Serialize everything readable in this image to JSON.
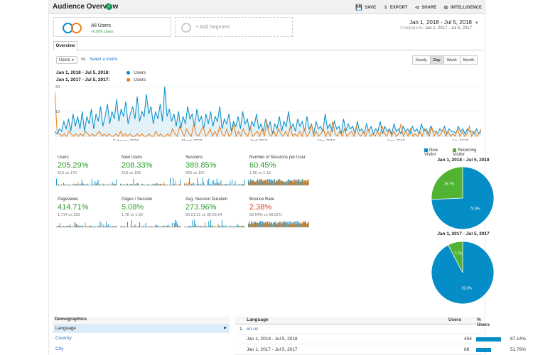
{
  "header": {
    "title": "Audience Overview",
    "actions": [
      {
        "icon": "save-icon",
        "glyph": "💾",
        "label": "SAVE"
      },
      {
        "icon": "export-icon",
        "glyph": "⇪",
        "label": "EXPORT"
      },
      {
        "icon": "share-icon",
        "glyph": "⋖",
        "label": "SHARE"
      },
      {
        "icon": "intelligence-icon",
        "glyph": "⊗",
        "label": "INTELLIGENCE"
      }
    ]
  },
  "segments": {
    "active": {
      "name": "All Users",
      "sub": "+0.00% Users"
    },
    "add_label": "+ Add Segment"
  },
  "date_range": {
    "primary": "Jan 1, 2018 - Jul 5, 2018",
    "compare_label": "Compare to:",
    "compare": "Jan 1, 2017 - Jul 5, 2017"
  },
  "tab": "Overview",
  "controls": {
    "metric": "Users",
    "vs": "vs.",
    "select_metric": "Select a metric",
    "periods": [
      "Hourly",
      "Day",
      "Week",
      "Month"
    ],
    "active_period": "Day"
  },
  "colors": {
    "blue": "#058dc7",
    "orange": "#ed7e17",
    "green": "#50b432"
  },
  "legend": [
    {
      "range": "Jan 1, 2018 - Jul 5, 2018:",
      "series": "Users",
      "color": "#058dc7"
    },
    {
      "range": "Jan 1, 2017 - Jul 5, 2017:",
      "series": "Users",
      "color": "#ed7e17"
    }
  ],
  "chart_data": {
    "type": "line",
    "y_ticks": [
      "20",
      "10"
    ],
    "ylim": [
      0,
      20
    ],
    "x_labels": [
      "February 2018",
      "March 2018",
      "April 2018",
      "May 2018",
      "June 2018",
      "July 2018"
    ],
    "series": [
      {
        "name": "Users",
        "values": [
          2,
          1,
          3,
          2,
          6,
          3,
          7,
          2,
          9,
          4,
          8,
          3,
          10,
          2,
          8,
          5,
          11,
          3,
          9,
          6,
          12,
          4,
          8,
          13,
          5,
          10,
          7,
          15,
          6,
          11,
          8,
          14,
          5,
          9,
          12,
          7,
          16,
          6,
          10,
          8,
          17,
          9,
          12,
          5,
          10,
          7,
          13,
          6,
          20,
          8,
          11,
          6,
          9,
          4,
          10,
          3,
          8,
          5,
          12,
          7,
          9,
          4,
          11,
          6,
          8,
          3,
          9,
          5,
          10,
          4,
          8,
          6,
          12,
          3,
          7,
          5,
          9,
          2,
          6,
          4,
          8,
          3,
          10,
          5,
          7,
          2,
          6,
          4,
          9,
          3,
          5,
          2,
          7,
          3,
          6,
          1,
          5,
          3,
          8,
          2,
          6,
          4,
          10,
          3,
          5,
          2,
          7,
          4,
          6,
          2,
          8,
          3,
          5,
          1,
          6,
          3,
          4,
          2,
          9,
          3,
          5,
          2,
          6,
          3,
          4,
          1,
          7,
          2,
          5,
          3,
          4,
          1,
          6,
          2,
          3,
          1,
          5,
          2,
          4,
          1,
          3,
          2,
          6,
          1,
          4,
          2,
          3,
          1,
          5,
          2,
          3,
          1,
          4,
          2,
          3,
          1,
          4,
          2,
          3,
          1,
          5,
          2,
          3,
          1,
          4,
          2,
          2,
          1,
          3,
          2,
          4,
          1,
          3,
          2,
          2,
          1,
          4,
          2,
          3,
          1,
          3,
          2,
          2,
          1,
          3,
          1,
          2
        ]
      },
      {
        "name": "Users",
        "values": [
          18,
          2,
          1,
          0,
          1,
          0,
          2,
          1,
          0,
          1,
          0,
          1,
          0,
          2,
          1,
          0,
          1,
          0,
          1,
          2,
          0,
          1,
          0,
          1,
          0,
          0,
          1,
          0,
          2,
          0,
          1,
          0,
          1,
          0,
          0,
          1,
          0,
          1,
          0,
          0,
          1,
          0,
          0,
          2,
          0,
          1,
          0,
          0,
          1,
          0,
          3,
          1,
          0,
          4,
          2,
          0,
          3,
          1,
          0,
          5,
          1,
          0,
          2,
          4,
          0,
          1,
          3,
          0,
          2,
          0,
          4,
          1,
          0,
          3,
          0,
          1,
          5,
          0,
          2,
          0,
          3,
          1,
          0,
          4,
          0,
          1,
          2,
          0,
          3,
          0,
          6,
          1,
          0,
          2,
          0,
          3,
          1,
          0,
          2,
          0,
          4,
          0,
          1,
          0,
          2,
          0,
          3,
          0,
          1,
          5,
          0,
          2,
          0,
          1,
          3,
          0,
          2,
          0,
          6,
          1,
          0,
          2,
          0,
          3,
          0,
          1,
          2,
          0,
          4,
          1,
          0,
          2,
          0,
          3,
          0,
          1,
          0,
          2,
          0,
          4,
          1,
          0,
          3,
          0,
          2,
          0,
          1,
          5,
          0,
          2,
          0,
          3,
          0,
          1,
          0,
          2,
          0,
          3,
          1,
          0,
          4,
          0,
          2,
          0,
          1,
          3,
          0,
          2,
          0,
          1,
          0,
          3,
          0,
          2,
          0,
          1,
          4,
          0,
          2,
          0,
          1,
          3
        ]
      }
    ]
  },
  "scorecards": [
    {
      "name": "Users",
      "value": "205.29%",
      "compare": "519 vs 170",
      "trend": "pos"
    },
    {
      "name": "New Users",
      "value": "208.33%",
      "compare": "518 vs 168",
      "trend": "pos"
    },
    {
      "name": "Sessions",
      "value": "389.85%",
      "compare": "965 vs 197",
      "trend": "pos"
    },
    {
      "name": "Number of Sessions per User",
      "value": "60.45%",
      "compare": "1.86 vs 1.16",
      "trend": "pos"
    },
    {
      "name": "Pageviews",
      "value": "414.71%",
      "compare": "1,714 vs 333",
      "trend": "pos"
    },
    {
      "name": "Pages / Session",
      "value": "5.08%",
      "compare": "1.78 vs 1.69",
      "trend": "pos"
    },
    {
      "name": "Avg. Session Duration",
      "value": "273.96%",
      "compare": "00:01:31 vs 00:00:24",
      "trend": "pos"
    },
    {
      "name": "Bounce Rate",
      "value": "2.38%",
      "compare": "69.64% vs 68.02%",
      "trend": "neg"
    }
  ],
  "pies": {
    "legend": [
      {
        "label": "New Visitor",
        "color": "#058dc7"
      },
      {
        "label": "Returning Visitor",
        "color": "#50b432"
      }
    ],
    "items": [
      {
        "title": "Jan 1, 2018 - Jul 5, 2018",
        "new_pct": 74.3,
        "ret_pct": 25.7,
        "new_label": "74.3%",
        "ret_label": "25.7%"
      },
      {
        "title": "Jan 1, 2017 - Jul 5, 2017",
        "new_pct": 92.3,
        "ret_pct": 7.7,
        "new_label": "92.3%",
        "ret_label": "7.7%"
      }
    ]
  },
  "demographics": {
    "title": "Demographics",
    "items": [
      "Language",
      "Country",
      "City"
    ],
    "active": "Language"
  },
  "table": {
    "headers": {
      "language": "Language",
      "users": "Users",
      "pct": "% Users"
    },
    "rows": [
      {
        "index": "1.",
        "label": "en-us",
        "users": "",
        "pct": "",
        "share": 0
      },
      {
        "index": "",
        "label": "Jan 1, 2018 - Jul 5, 2018",
        "users": "454",
        "pct": "87.14%",
        "share": 87.14
      },
      {
        "index": "",
        "label": "Jan 1, 2017 - Jul 5, 2017",
        "users": "88",
        "pct": "51.76%",
        "share": 51.76
      }
    ]
  }
}
